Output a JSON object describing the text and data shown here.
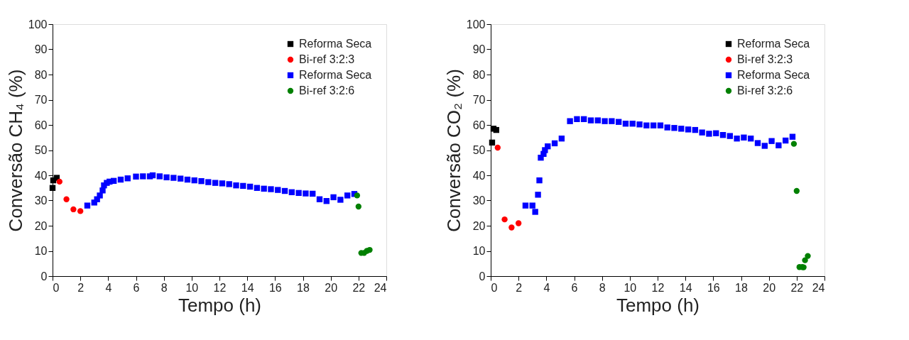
{
  "chart_data": [
    {
      "type": "scatter",
      "xlabel": "Tempo (h)",
      "ylabel": "Conversão CH₄ (%)",
      "xlim": [
        0,
        24
      ],
      "ylim": [
        0,
        100
      ],
      "xticks": [
        0,
        2,
        4,
        6,
        8,
        10,
        12,
        14,
        16,
        18,
        20,
        22,
        24
      ],
      "yticks": [
        0,
        10,
        20,
        30,
        40,
        50,
        60,
        70,
        80,
        90,
        100
      ],
      "grid": false,
      "legend": "top right",
      "series": [
        {
          "name": "Reforma Seca",
          "color": "#000000",
          "marker": "square",
          "x": [
            0,
            0.05,
            0.3
          ],
          "values": [
            35,
            38,
            39
          ]
        },
        {
          "name": "Bi-ref 3:2:3",
          "color": "#ff0000",
          "marker": "circle",
          "x": [
            0.5,
            1.0,
            1.5,
            2.0
          ],
          "values": [
            37.5,
            30.5,
            26.5,
            25.8
          ]
        },
        {
          "name": "Reforma Seca",
          "color": "#0000ff",
          "marker": "square",
          "x": [
            2.5,
            3.0,
            3.2,
            3.4,
            3.6,
            3.7,
            3.9,
            4.1,
            4.4,
            4.9,
            5.4,
            6.0,
            6.5,
            7.0,
            7.2,
            7.7,
            8.2,
            8.7,
            9.2,
            9.7,
            10.2,
            10.7,
            11.2,
            11.7,
            12.2,
            12.7,
            13.2,
            13.7,
            14.2,
            14.7,
            15.2,
            15.7,
            16.2,
            16.7,
            17.2,
            17.7,
            18.2,
            18.7,
            19.2,
            19.7,
            20.2,
            20.7,
            21.2,
            21.7
          ],
          "values": [
            28,
            29.2,
            30.5,
            32,
            34,
            36,
            37,
            37.5,
            37.8,
            38.3,
            38.8,
            39.5,
            39.6,
            39.6,
            40,
            39.6,
            39.2,
            39,
            38.7,
            38.3,
            38,
            37.7,
            37.3,
            37,
            36.8,
            36.5,
            36,
            35.8,
            35.5,
            35,
            34.7,
            34.5,
            34.2,
            33.8,
            33.3,
            33,
            32.8,
            32.7,
            30.5,
            29.8,
            31.3,
            30.3,
            32,
            32.6
          ]
        },
        {
          "name": "Bi-ref 3:2:6",
          "color": "#008000",
          "marker": "circle",
          "x": [
            21.9,
            22.0,
            22.2,
            22.4,
            22.6,
            22.8
          ],
          "values": [
            32,
            27.6,
            9.2,
            9.2,
            10,
            10.4
          ]
        }
      ]
    },
    {
      "type": "scatter",
      "xlabel": "Tempo (h)",
      "ylabel": "Conversão CO₂ (%)",
      "xlim": [
        0,
        24
      ],
      "ylim": [
        0,
        100
      ],
      "xticks": [
        0,
        2,
        4,
        6,
        8,
        10,
        12,
        14,
        16,
        18,
        20,
        22,
        24
      ],
      "yticks": [
        0,
        10,
        20,
        30,
        40,
        50,
        60,
        70,
        80,
        90,
        100
      ],
      "grid": false,
      "legend": "top right",
      "series": [
        {
          "name": "Reforma Seca",
          "color": "#000000",
          "marker": "square",
          "x": [
            0.1,
            0.2,
            0.4
          ],
          "values": [
            53,
            58.5,
            58
          ]
        },
        {
          "name": "Bi-ref 3:2:3",
          "color": "#ff0000",
          "marker": "circle",
          "x": [
            0.5,
            1.0,
            1.5,
            2.0
          ],
          "values": [
            51,
            22.5,
            19.3,
            21
          ]
        },
        {
          "name": "Reforma Seca",
          "color": "#0000ff",
          "marker": "square",
          "x": [
            2.5,
            3.0,
            3.2,
            3.4,
            3.5,
            3.6,
            3.8,
            3.9,
            4.1,
            4.6,
            5.1,
            5.7,
            6.2,
            6.7,
            7.2,
            7.7,
            8.2,
            8.7,
            9.2,
            9.7,
            10.2,
            10.7,
            11.2,
            11.7,
            12.2,
            12.7,
            13.2,
            13.7,
            14.2,
            14.7,
            15.2,
            15.7,
            16.2,
            16.7,
            17.2,
            17.7,
            18.2,
            18.7,
            19.2,
            19.7,
            20.2,
            20.7,
            21.2,
            21.7
          ],
          "values": [
            28,
            28,
            25.5,
            32.3,
            38,
            47,
            48.5,
            50,
            51.5,
            52.7,
            54.6,
            61.5,
            62.3,
            62.3,
            61.8,
            61.8,
            61.5,
            61.5,
            61.2,
            60.5,
            60.5,
            60.2,
            59.8,
            59.8,
            59.8,
            59,
            58.8,
            58.5,
            58.2,
            58,
            57,
            56.5,
            56.7,
            56,
            55.6,
            54.6,
            55,
            54.6,
            52.8,
            51.7,
            53.6,
            51.9,
            53.8,
            55.3
          ]
        },
        {
          "name": "Bi-ref 3:2:6",
          "color": "#008000",
          "marker": "circle",
          "x": [
            21.8,
            22.0,
            22.2,
            22.4,
            22.5,
            22.6,
            22.8
          ],
          "values": [
            52.5,
            33.8,
            3.6,
            3.6,
            3.5,
            6.3,
            8
          ]
        }
      ]
    }
  ]
}
